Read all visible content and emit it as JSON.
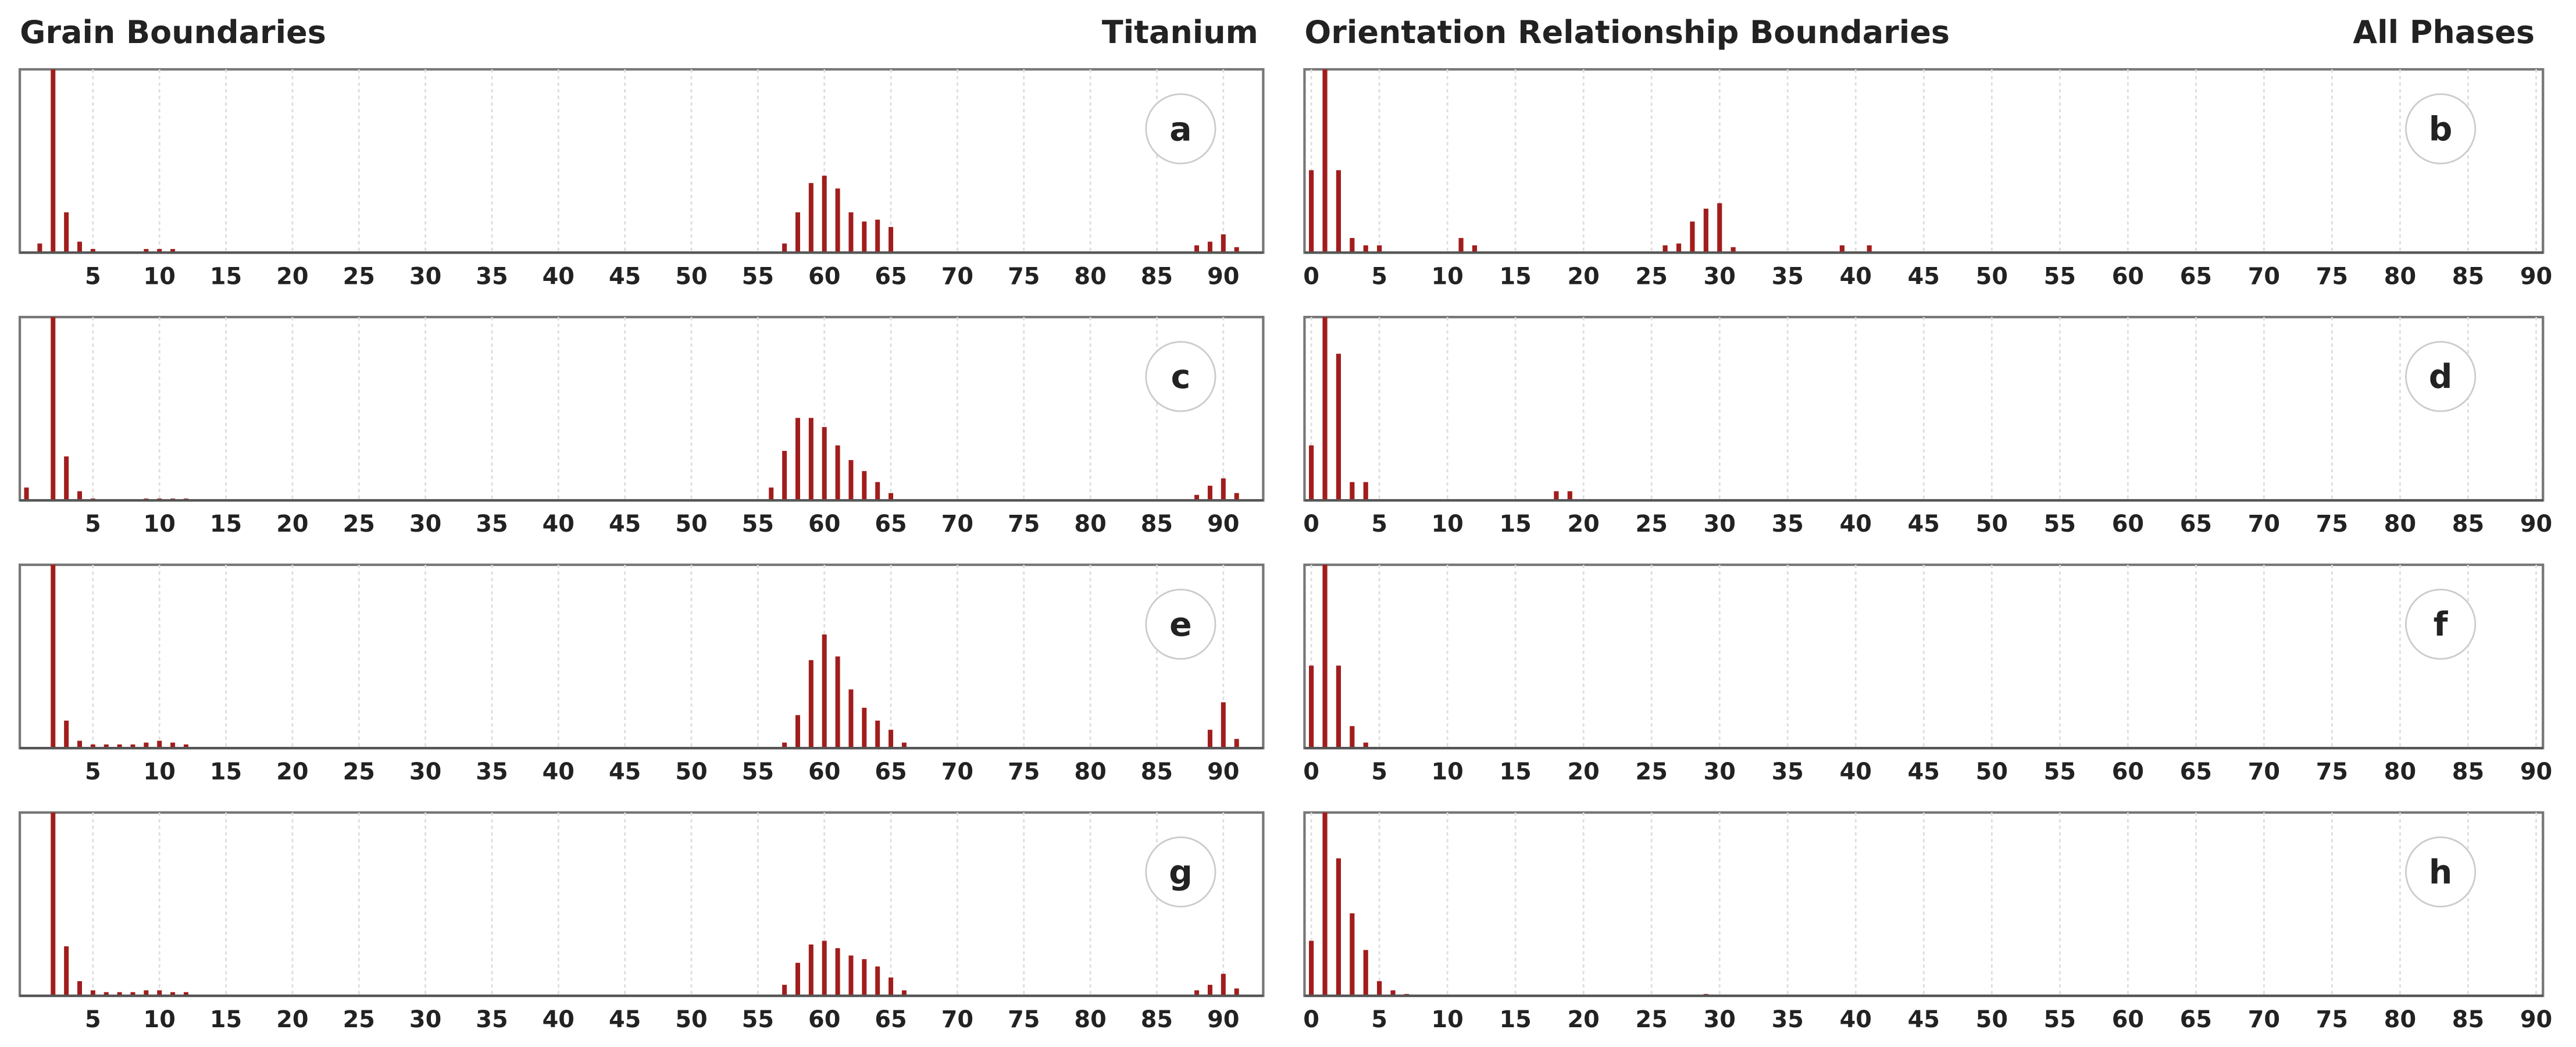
{
  "headers": {
    "left_title": "Grain Boundaries",
    "left_phase": "Titanium",
    "right_title": "Orientation Relationship Boundaries",
    "right_phase": "All Phases"
  },
  "chart_data": [
    {
      "type": "bar",
      "label": "a",
      "color": "#a11d1d",
      "xlim": [
        -0.5,
        93
      ],
      "ylim": [
        0,
        100
      ],
      "xticks": [
        5,
        10,
        15,
        20,
        25,
        30,
        35,
        40,
        45,
        50,
        55,
        60,
        65,
        70,
        75,
        80,
        85,
        90
      ],
      "grid": true,
      "x": [
        1,
        2,
        3,
        4,
        5,
        9,
        10,
        11,
        57,
        58,
        59,
        60,
        61,
        62,
        63,
        64,
        65,
        88,
        89,
        90,
        91
      ],
      "values": [
        5,
        100,
        22,
        6,
        2,
        2,
        2,
        2,
        5,
        22,
        38,
        42,
        35,
        22,
        17,
        18,
        14,
        4,
        6,
        10,
        3
      ]
    },
    {
      "type": "bar",
      "label": "b",
      "color": "#a11d1d",
      "xlim": [
        -0.5,
        90.5
      ],
      "ylim": [
        0,
        100
      ],
      "xticks": [
        0,
        5,
        10,
        15,
        20,
        25,
        30,
        35,
        40,
        45,
        50,
        55,
        60,
        65,
        70,
        75,
        80,
        85,
        90
      ],
      "grid": true,
      "x": [
        0,
        1,
        2,
        3,
        4,
        5,
        11,
        12,
        26,
        27,
        28,
        29,
        30,
        31,
        39,
        41
      ],
      "values": [
        45,
        100,
        45,
        8,
        4,
        4,
        8,
        4,
        4,
        5,
        17,
        24,
        27,
        3,
        4,
        4
      ]
    },
    {
      "type": "bar",
      "label": "c",
      "color": "#a11d1d",
      "xlim": [
        -0.5,
        93
      ],
      "ylim": [
        0,
        100
      ],
      "xticks": [
        5,
        10,
        15,
        20,
        25,
        30,
        35,
        40,
        45,
        50,
        55,
        60,
        65,
        70,
        75,
        80,
        85,
        90
      ],
      "grid": true,
      "x": [
        0,
        2,
        3,
        4,
        5,
        9,
        10,
        11,
        12,
        56,
        57,
        58,
        59,
        60,
        61,
        62,
        63,
        64,
        65,
        88,
        89,
        90,
        91
      ],
      "values": [
        7,
        100,
        24,
        5,
        1,
        1,
        1,
        1,
        1,
        7,
        27,
        45,
        45,
        40,
        30,
        22,
        16,
        10,
        4,
        3,
        8,
        12,
        4
      ]
    },
    {
      "type": "bar",
      "label": "d",
      "color": "#a11d1d",
      "xlim": [
        -0.5,
        90.5
      ],
      "ylim": [
        0,
        100
      ],
      "xticks": [
        0,
        5,
        10,
        15,
        20,
        25,
        30,
        35,
        40,
        45,
        50,
        55,
        60,
        65,
        70,
        75,
        80,
        85,
        90
      ],
      "grid": true,
      "x": [
        0,
        1,
        2,
        3,
        4,
        18,
        19
      ],
      "values": [
        30,
        100,
        80,
        10,
        10,
        5,
        5
      ]
    },
    {
      "type": "bar",
      "label": "e",
      "color": "#a11d1d",
      "xlim": [
        -0.5,
        93
      ],
      "ylim": [
        0,
        100
      ],
      "xticks": [
        5,
        10,
        15,
        20,
        25,
        30,
        35,
        40,
        45,
        50,
        55,
        60,
        65,
        70,
        75,
        80,
        85,
        90
      ],
      "grid": true,
      "x": [
        2,
        3,
        4,
        5,
        6,
        7,
        8,
        9,
        10,
        11,
        12,
        57,
        58,
        59,
        60,
        61,
        62,
        63,
        64,
        65,
        66,
        89,
        90,
        91
      ],
      "values": [
        100,
        15,
        4,
        2,
        2,
        2,
        2,
        3,
        4,
        3,
        2,
        3,
        18,
        48,
        62,
        50,
        32,
        22,
        15,
        10,
        3,
        10,
        25,
        5
      ]
    },
    {
      "type": "bar",
      "label": "f",
      "color": "#a11d1d",
      "xlim": [
        -0.5,
        90.5
      ],
      "ylim": [
        0,
        100
      ],
      "xticks": [
        0,
        5,
        10,
        15,
        20,
        25,
        30,
        35,
        40,
        45,
        50,
        55,
        60,
        65,
        70,
        75,
        80,
        85,
        90
      ],
      "grid": true,
      "x": [
        0,
        1,
        2,
        3,
        4
      ],
      "values": [
        45,
        100,
        45,
        12,
        3
      ]
    },
    {
      "type": "bar",
      "label": "g",
      "color": "#a11d1d",
      "xlim": [
        -0.5,
        93
      ],
      "ylim": [
        0,
        100
      ],
      "xticks": [
        5,
        10,
        15,
        20,
        25,
        30,
        35,
        40,
        45,
        50,
        55,
        60,
        65,
        70,
        75,
        80,
        85,
        90
      ],
      "grid": true,
      "x": [
        2,
        3,
        4,
        5,
        6,
        7,
        8,
        9,
        10,
        11,
        12,
        57,
        58,
        59,
        60,
        61,
        62,
        63,
        64,
        65,
        66,
        88,
        89,
        90,
        91
      ],
      "values": [
        100,
        27,
        8,
        3,
        2,
        2,
        2,
        3,
        3,
        2,
        2,
        6,
        18,
        28,
        30,
        26,
        22,
        20,
        16,
        10,
        3,
        3,
        6,
        12,
        4
      ]
    },
    {
      "type": "bar",
      "label": "h",
      "color": "#a11d1d",
      "xlim": [
        -0.5,
        90.5
      ],
      "ylim": [
        0,
        100
      ],
      "xticks": [
        0,
        5,
        10,
        15,
        20,
        25,
        30,
        35,
        40,
        45,
        50,
        55,
        60,
        65,
        70,
        75,
        80,
        85,
        90
      ],
      "grid": true,
      "x": [
        0,
        1,
        2,
        3,
        4,
        5,
        6,
        7,
        29
      ],
      "values": [
        30,
        100,
        75,
        45,
        25,
        8,
        3,
        1,
        1
      ]
    }
  ]
}
